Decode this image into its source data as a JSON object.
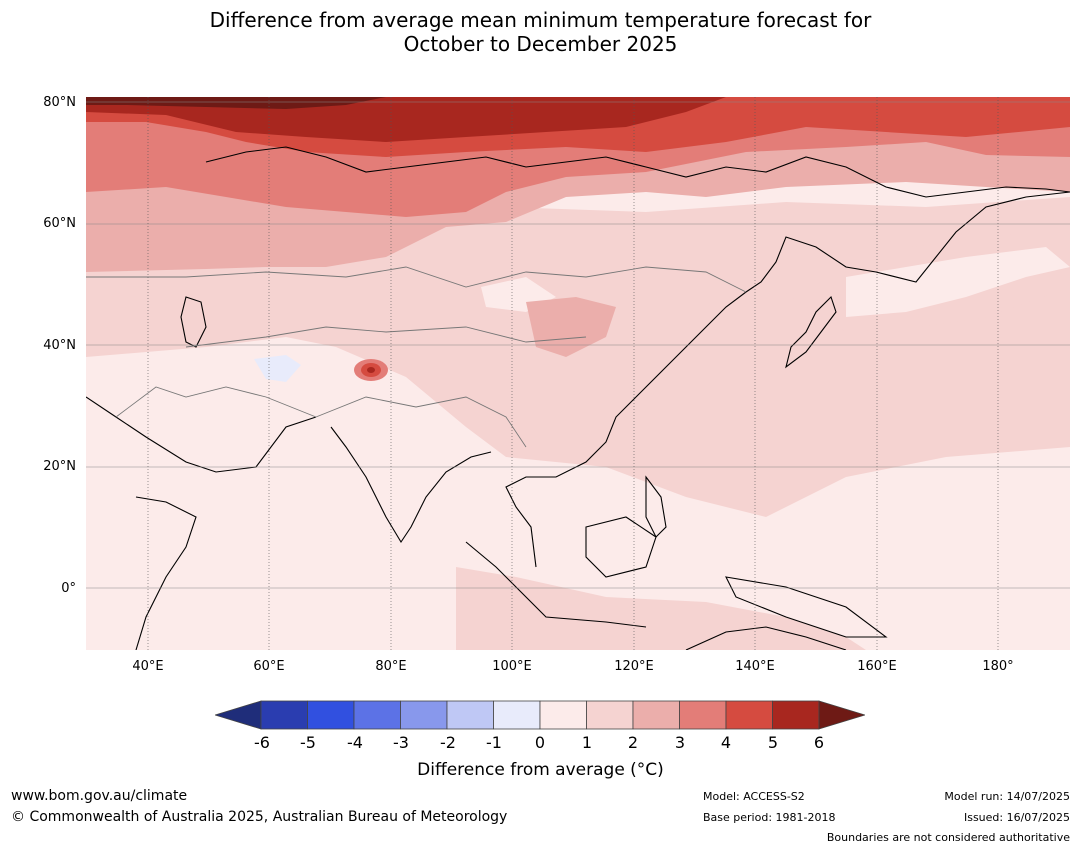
{
  "title_line1": "Difference from average mean minimum temperature forecast for",
  "title_line2": "October to December 2025",
  "lat_labels": [
    "80°N",
    "60°N",
    "40°N",
    "20°N",
    "0°"
  ],
  "lon_labels": [
    "40°E",
    "60°E",
    "80°E",
    "100°E",
    "120°E",
    "140°E",
    "160°E",
    "180°"
  ],
  "colorbar": {
    "ticks": [
      "-6",
      "-5",
      "-4",
      "-3",
      "-2",
      "-1",
      "0",
      "1",
      "2",
      "3",
      "4",
      "5",
      "6"
    ],
    "colors": [
      "#1f2d7a",
      "#2a3db0",
      "#3150e0",
      "#5c72e6",
      "#8898ec",
      "#bfc8f5",
      "#e8ebfb",
      "#fcebea",
      "#f5d3d1",
      "#ebaeab",
      "#e37d78",
      "#d54b40",
      "#a8271f",
      "#6e1a15"
    ],
    "label": "Difference from average (°C)"
  },
  "footer": {
    "website": "www.bom.gov.au/climate",
    "copyright": "© Commonwealth of Australia 2025, Australian Bureau of Meteorology",
    "model": "Model: ACCESS-S2",
    "base_period": "Base period: 1981-2018",
    "model_run": "Model run: 14/07/2025",
    "issued": "Issued: 16/07/2025",
    "disclaimer": "Boundaries are not considered authoritative"
  }
}
